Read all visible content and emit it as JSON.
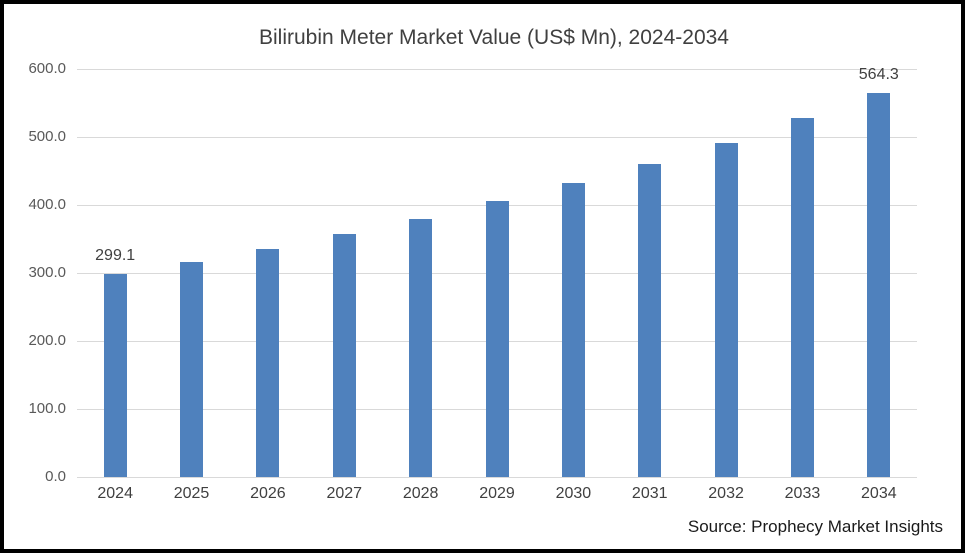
{
  "chart_data": {
    "type": "bar",
    "title": "Bilirubin Meter Market Value (US$ Mn), 2024-2034",
    "categories": [
      "2024",
      "2025",
      "2026",
      "2027",
      "2028",
      "2029",
      "2030",
      "2031",
      "2032",
      "2033",
      "2034"
    ],
    "values": [
      299.1,
      316.5,
      336.0,
      357.5,
      379.5,
      405.5,
      432.0,
      460.5,
      491.0,
      527.5,
      564.3
    ],
    "labeled_points": {
      "2024": "299.1",
      "2034": "564.3"
    },
    "xlabel": "",
    "ylabel": "",
    "ylim": [
      0,
      600
    ],
    "ytick_interval": 100,
    "ytick_labels": [
      "600.0",
      "500.0",
      "400.0",
      "300.0",
      "200.0",
      "100.0",
      "0.0"
    ],
    "grid": true,
    "legend": "none",
    "source_note": "Source: Prophecy Market Insights",
    "colors": {
      "bar": "#4F81BD",
      "gridline": "#D9D9D9",
      "axis_text": "#595959",
      "title_text": "#404040",
      "frame_border": "#000000",
      "background": "#FFFFFF"
    }
  }
}
